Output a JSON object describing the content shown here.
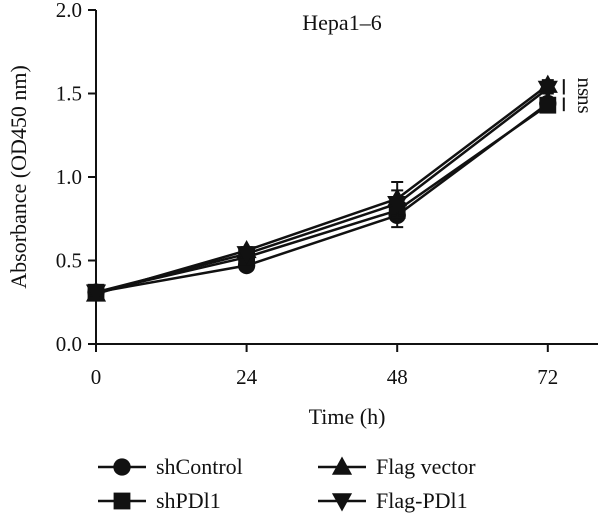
{
  "chart_data": {
    "type": "line",
    "title": "Hepa1–6",
    "xlabel": "Time (h)",
    "ylabel": "Absorbance (OD450 nm)",
    "x": [
      0,
      24,
      48,
      72
    ],
    "x_tick_labels": [
      "0",
      "24",
      "48",
      "72"
    ],
    "xlim": [
      0,
      80
    ],
    "ylim": [
      0,
      2.0
    ],
    "y_ticks": [
      0.0,
      0.5,
      1.0,
      1.5,
      2.0
    ],
    "y_tick_labels": [
      "0.0",
      "0.5",
      "1.0",
      "1.5",
      "2.0"
    ],
    "grid": false,
    "legend_position": "bottom",
    "series": [
      {
        "name": "shControl",
        "marker": "circle",
        "values": [
          0.31,
          0.47,
          0.77,
          1.44
        ],
        "errors": [
          0.02,
          0.02,
          0.07,
          0.03
        ]
      },
      {
        "name": "shPDl1",
        "marker": "square",
        "values": [
          0.31,
          0.52,
          0.8,
          1.43
        ],
        "errors": [
          0.02,
          0.02,
          0.06,
          0.03
        ]
      },
      {
        "name": "Flag vector",
        "marker": "triangle-up",
        "values": [
          0.3,
          0.56,
          0.87,
          1.55
        ],
        "errors": [
          0.02,
          0.02,
          0.1,
          0.03
        ]
      },
      {
        "name": "Flag-PDl1",
        "marker": "triangle-down",
        "values": [
          0.31,
          0.54,
          0.84,
          1.53
        ],
        "errors": [
          0.02,
          0.02,
          0.08,
          0.03
        ]
      }
    ],
    "annotations": [
      {
        "text": "ns",
        "between": [
          "Flag vector",
          "Flag-PDl1"
        ],
        "x": 72
      },
      {
        "text": "ns",
        "between": [
          "shControl",
          "shPDl1"
        ],
        "x": 72
      }
    ],
    "colors": {
      "line": "#111111",
      "marker": "#111111"
    }
  }
}
